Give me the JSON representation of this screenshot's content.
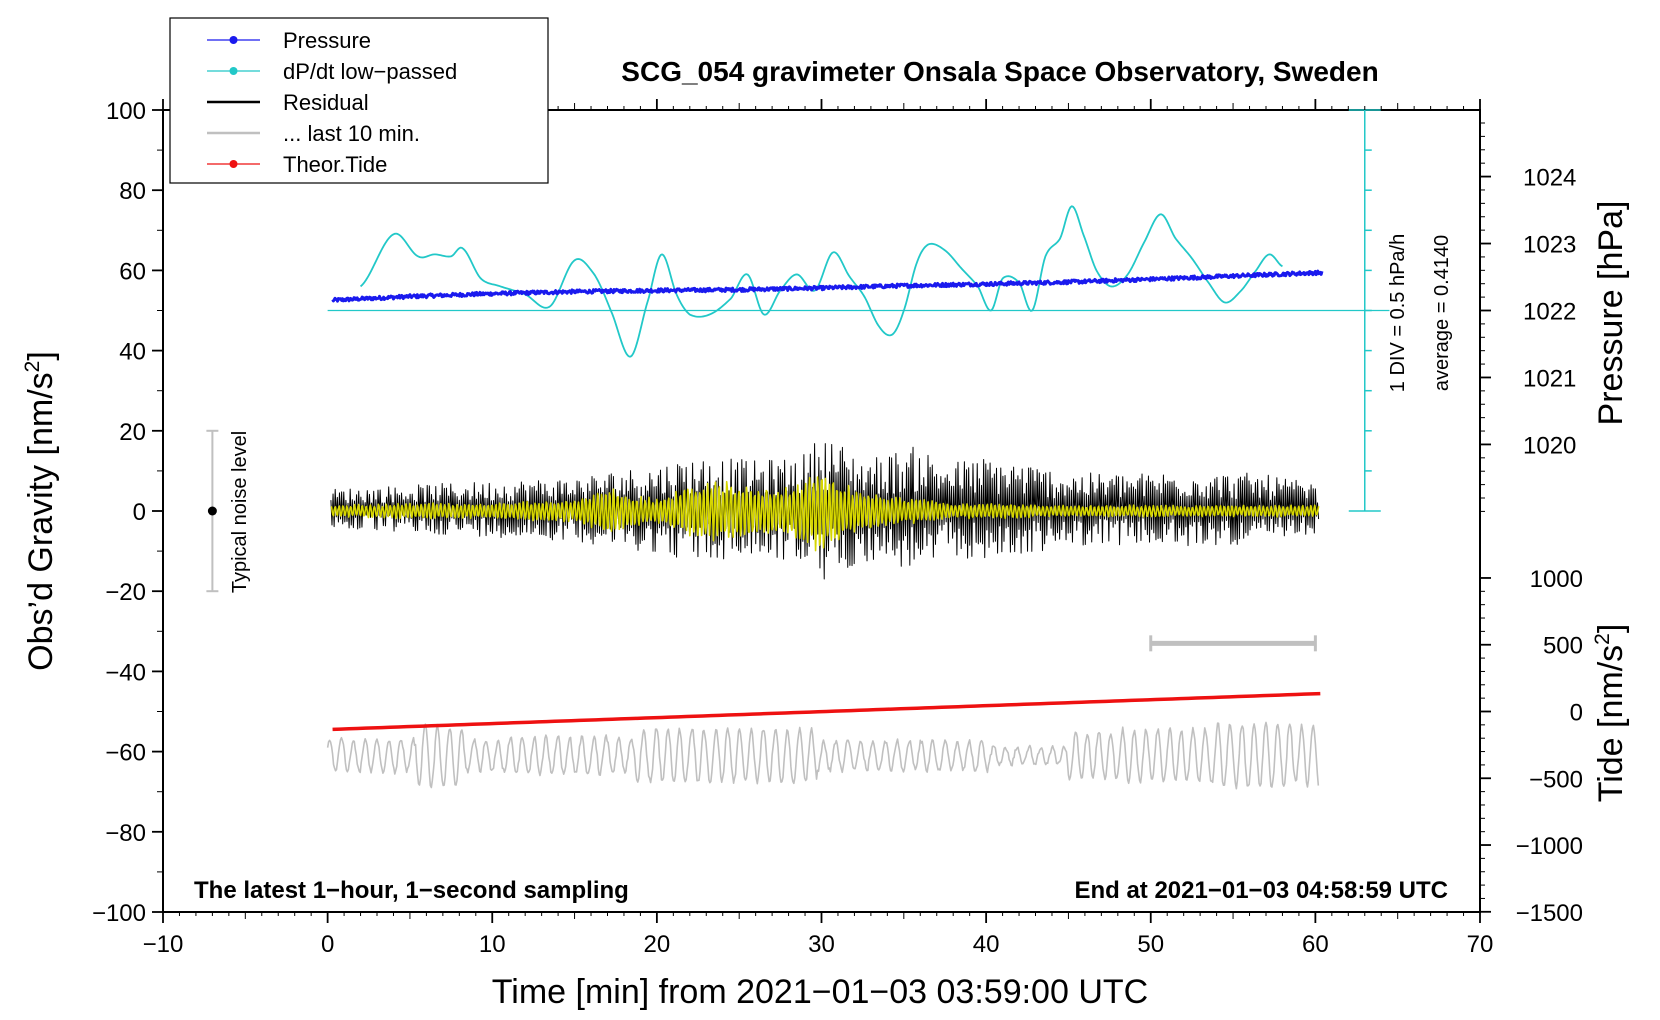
{
  "chart_data": {
    "type": "line",
    "title": "SCG_054 gravimeter Onsala Space Observatory, Sweden",
    "xlabel": "Time [min] from 2021−01−03 03:59:00 UTC",
    "ylabel_left": "Obs’d Gravity [nm/s",
    "ylabel_left_sup": "2",
    "ylabel_left_end": "]",
    "ylabel_right_pressure": "Pressure [hPa]",
    "ylabel_right_tide": "Tide [nm/s",
    "ylabel_right_tide_sup": "2",
    "ylabel_right_tide_end": "]",
    "xlim": [
      -10,
      70
    ],
    "ylim": [
      -100,
      100
    ],
    "x_ticks": [
      "−10",
      "0",
      "10",
      "20",
      "30",
      "40",
      "50",
      "60",
      "70"
    ],
    "x_tick_values": [
      -10,
      0,
      10,
      20,
      30,
      40,
      50,
      60,
      70
    ],
    "y_ticks": [
      "100",
      "80",
      "60",
      "40",
      "20",
      "0",
      "−20",
      "−40",
      "−60",
      "−80",
      "−100"
    ],
    "y_tick_values": [
      100,
      80,
      60,
      40,
      20,
      0,
      -20,
      -40,
      -60,
      -80,
      -100
    ],
    "pressure_axis": {
      "ticks": [
        "1024",
        "1023",
        "1022",
        "1021",
        "1020"
      ],
      "values": [
        1024,
        1023,
        1022,
        1021,
        1020
      ],
      "gravity_at_1022": 50,
      "gravity_per_hPa": 16.7
    },
    "tide_axis": {
      "ticks": [
        "1000",
        "500",
        "0",
        "−500",
        "−1000",
        "−1500"
      ],
      "values": [
        1000,
        500,
        0,
        -500,
        -1000,
        -1500
      ],
      "gravity_at_0": -50,
      "gravity_per_unit": 0.0333
    },
    "legend": {
      "position": "top-left",
      "entries": [
        {
          "label": "Pressure",
          "color": "#1a1aee",
          "marker": true
        },
        {
          "label": "dP/dt low−passed",
          "color": "#22c8c8",
          "marker": true
        },
        {
          "label": "Residual",
          "color": "#000000",
          "marker": false
        },
        {
          "label": "... last 10 min.",
          "color": "#c0c0c0",
          "marker": false
        },
        {
          "label": "Theor.Tide",
          "color": "#ee1111",
          "marker": true
        }
      ]
    },
    "annotations": {
      "bottom_left": "The latest 1−hour, 1−second sampling",
      "bottom_right": "End at 2021−01−03 04:58:59 UTC",
      "noise_label": "Typical noise level",
      "div_label": "1 DIV = 0.5 hPa/h",
      "average_label": "average = 0.4140"
    },
    "noise_bar": {
      "x": -7,
      "center": 0,
      "low": -20,
      "high": 20
    },
    "div_scale": {
      "x": 63,
      "from": 0,
      "to": 100,
      "baseline": 50,
      "tick_step": 10
    },
    "last10_bar": {
      "x0": 50,
      "x1": 60,
      "y": -33
    },
    "series": [
      {
        "name": "Pressure",
        "color": "#1a1aee",
        "x": [
          0,
          5,
          10,
          15,
          20,
          25,
          30,
          35,
          40,
          45,
          50,
          55,
          60
        ],
        "values": [
          52.5,
          53.5,
          54.2,
          54.7,
          55.0,
          55.2,
          55.6,
          56.2,
          56.6,
          57.1,
          57.8,
          58.6,
          59.4
        ]
      },
      {
        "name": "dP/dt low-passed",
        "color": "#22c8c8",
        "x": [
          2.0,
          4.0,
          5.5,
          6.5,
          7.5,
          8.2,
          9.3,
          10.5,
          12.0,
          13.5,
          15.0,
          16.2,
          17.2,
          18.4,
          19.5,
          20.3,
          21.2,
          22.0,
          23.2,
          24.5,
          25.5,
          26.5,
          27.5,
          28.5,
          29.6,
          30.7,
          31.7,
          32.6,
          33.5,
          34.3,
          35.0,
          35.8,
          36.5,
          37.5,
          38.5,
          39.5,
          40.3,
          41.0,
          42.0,
          42.8,
          43.6,
          44.5,
          45.2,
          45.9,
          46.7,
          47.6,
          48.6,
          49.6,
          50.6,
          51.5,
          52.5,
          53.5,
          54.5,
          55.5,
          56.4,
          57.2,
          58.0
        ],
        "values": [
          56,
          69,
          63.5,
          64,
          63.5,
          65.5,
          58,
          56,
          54,
          51,
          62.5,
          59,
          50,
          38.5,
          53,
          64,
          54,
          49,
          49,
          53,
          59,
          49,
          55,
          59,
          55,
          64.5,
          58.5,
          53.5,
          46,
          44,
          50,
          62,
          66.5,
          65,
          60.5,
          56,
          50,
          58,
          57,
          50,
          63.5,
          68,
          76,
          69,
          60,
          56,
          59,
          67,
          74,
          68,
          63,
          57,
          52,
          55,
          60,
          64,
          61
        ]
      },
      {
        "name": "Residual",
        "color": "#000000",
        "x": [
          0,
          5,
          10,
          15,
          18,
          20,
          22,
          24,
          26,
          28,
          29,
          30,
          31,
          32,
          33,
          34,
          35,
          36,
          37,
          38,
          40,
          42,
          44,
          46,
          48,
          50,
          52,
          54,
          56,
          58,
          60
        ],
        "values": [
          5,
          6,
          7,
          8,
          10,
          11,
          13,
          13,
          12,
          13,
          14,
          19,
          17,
          14,
          13,
          14,
          15,
          16,
          13,
          12,
          13,
          12,
          10,
          9,
          9,
          9,
          10,
          9,
          9,
          8,
          6
        ]
      },
      {
        "name": "... last 10 min.",
        "color": "#c0c0c0",
        "x": [
          0,
          10,
          20,
          30,
          40,
          50,
          60
        ],
        "values": [
          -61,
          -61,
          -61,
          -61,
          -61,
          -61,
          -61
        ]
      },
      {
        "name": "Theor.Tide",
        "color": "#ee1111",
        "x": [
          0,
          60.5
        ],
        "values": [
          -54.5,
          -45.5
        ]
      },
      {
        "name": "Residual low-passed",
        "color": "#d6d600",
        "x": [
          0,
          5,
          10,
          15,
          17,
          20,
          22,
          24,
          26,
          28,
          30,
          32,
          34,
          36,
          38,
          40,
          44,
          48,
          52,
          56,
          60
        ],
        "values": [
          1.5,
          2,
          2,
          3,
          6,
          3,
          7,
          8,
          6,
          6,
          11,
          6,
          4,
          3,
          2,
          2,
          1.5,
          1.5,
          1.5,
          1.5,
          1.5
        ]
      }
    ]
  }
}
